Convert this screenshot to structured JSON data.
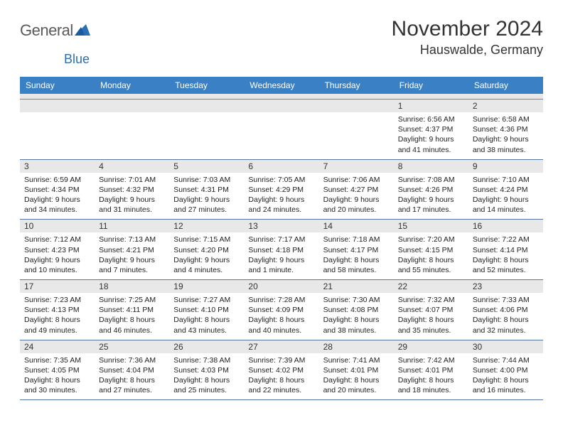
{
  "logo": {
    "text1": "General",
    "text2": "Blue",
    "color_gray": "#5a5a5a",
    "color_blue": "#2b6fb5",
    "triangle_color": "#2b6fb5"
  },
  "header": {
    "month_title": "November 2024",
    "location": "Hauswalde, Germany"
  },
  "colors": {
    "header_bg": "#3a80c4",
    "header_text": "#ffffff",
    "daynum_bg": "#e8e8e8",
    "border": "#5577a0"
  },
  "day_labels": [
    "Sunday",
    "Monday",
    "Tuesday",
    "Wednesday",
    "Thursday",
    "Friday",
    "Saturday"
  ],
  "weeks": [
    [
      {
        "n": "",
        "lines": []
      },
      {
        "n": "",
        "lines": []
      },
      {
        "n": "",
        "lines": []
      },
      {
        "n": "",
        "lines": []
      },
      {
        "n": "",
        "lines": []
      },
      {
        "n": "1",
        "lines": [
          "Sunrise: 6:56 AM",
          "Sunset: 4:37 PM",
          "Daylight: 9 hours",
          "and 41 minutes."
        ]
      },
      {
        "n": "2",
        "lines": [
          "Sunrise: 6:58 AM",
          "Sunset: 4:36 PM",
          "Daylight: 9 hours",
          "and 38 minutes."
        ]
      }
    ],
    [
      {
        "n": "3",
        "lines": [
          "Sunrise: 6:59 AM",
          "Sunset: 4:34 PM",
          "Daylight: 9 hours",
          "and 34 minutes."
        ]
      },
      {
        "n": "4",
        "lines": [
          "Sunrise: 7:01 AM",
          "Sunset: 4:32 PM",
          "Daylight: 9 hours",
          "and 31 minutes."
        ]
      },
      {
        "n": "5",
        "lines": [
          "Sunrise: 7:03 AM",
          "Sunset: 4:31 PM",
          "Daylight: 9 hours",
          "and 27 minutes."
        ]
      },
      {
        "n": "6",
        "lines": [
          "Sunrise: 7:05 AM",
          "Sunset: 4:29 PM",
          "Daylight: 9 hours",
          "and 24 minutes."
        ]
      },
      {
        "n": "7",
        "lines": [
          "Sunrise: 7:06 AM",
          "Sunset: 4:27 PM",
          "Daylight: 9 hours",
          "and 20 minutes."
        ]
      },
      {
        "n": "8",
        "lines": [
          "Sunrise: 7:08 AM",
          "Sunset: 4:26 PM",
          "Daylight: 9 hours",
          "and 17 minutes."
        ]
      },
      {
        "n": "9",
        "lines": [
          "Sunrise: 7:10 AM",
          "Sunset: 4:24 PM",
          "Daylight: 9 hours",
          "and 14 minutes."
        ]
      }
    ],
    [
      {
        "n": "10",
        "lines": [
          "Sunrise: 7:12 AM",
          "Sunset: 4:23 PM",
          "Daylight: 9 hours",
          "and 10 minutes."
        ]
      },
      {
        "n": "11",
        "lines": [
          "Sunrise: 7:13 AM",
          "Sunset: 4:21 PM",
          "Daylight: 9 hours",
          "and 7 minutes."
        ]
      },
      {
        "n": "12",
        "lines": [
          "Sunrise: 7:15 AM",
          "Sunset: 4:20 PM",
          "Daylight: 9 hours",
          "and 4 minutes."
        ]
      },
      {
        "n": "13",
        "lines": [
          "Sunrise: 7:17 AM",
          "Sunset: 4:18 PM",
          "Daylight: 9 hours",
          "and 1 minute."
        ]
      },
      {
        "n": "14",
        "lines": [
          "Sunrise: 7:18 AM",
          "Sunset: 4:17 PM",
          "Daylight: 8 hours",
          "and 58 minutes."
        ]
      },
      {
        "n": "15",
        "lines": [
          "Sunrise: 7:20 AM",
          "Sunset: 4:15 PM",
          "Daylight: 8 hours",
          "and 55 minutes."
        ]
      },
      {
        "n": "16",
        "lines": [
          "Sunrise: 7:22 AM",
          "Sunset: 4:14 PM",
          "Daylight: 8 hours",
          "and 52 minutes."
        ]
      }
    ],
    [
      {
        "n": "17",
        "lines": [
          "Sunrise: 7:23 AM",
          "Sunset: 4:13 PM",
          "Daylight: 8 hours",
          "and 49 minutes."
        ]
      },
      {
        "n": "18",
        "lines": [
          "Sunrise: 7:25 AM",
          "Sunset: 4:11 PM",
          "Daylight: 8 hours",
          "and 46 minutes."
        ]
      },
      {
        "n": "19",
        "lines": [
          "Sunrise: 7:27 AM",
          "Sunset: 4:10 PM",
          "Daylight: 8 hours",
          "and 43 minutes."
        ]
      },
      {
        "n": "20",
        "lines": [
          "Sunrise: 7:28 AM",
          "Sunset: 4:09 PM",
          "Daylight: 8 hours",
          "and 40 minutes."
        ]
      },
      {
        "n": "21",
        "lines": [
          "Sunrise: 7:30 AM",
          "Sunset: 4:08 PM",
          "Daylight: 8 hours",
          "and 38 minutes."
        ]
      },
      {
        "n": "22",
        "lines": [
          "Sunrise: 7:32 AM",
          "Sunset: 4:07 PM",
          "Daylight: 8 hours",
          "and 35 minutes."
        ]
      },
      {
        "n": "23",
        "lines": [
          "Sunrise: 7:33 AM",
          "Sunset: 4:06 PM",
          "Daylight: 8 hours",
          "and 32 minutes."
        ]
      }
    ],
    [
      {
        "n": "24",
        "lines": [
          "Sunrise: 7:35 AM",
          "Sunset: 4:05 PM",
          "Daylight: 8 hours",
          "and 30 minutes."
        ]
      },
      {
        "n": "25",
        "lines": [
          "Sunrise: 7:36 AM",
          "Sunset: 4:04 PM",
          "Daylight: 8 hours",
          "and 27 minutes."
        ]
      },
      {
        "n": "26",
        "lines": [
          "Sunrise: 7:38 AM",
          "Sunset: 4:03 PM",
          "Daylight: 8 hours",
          "and 25 minutes."
        ]
      },
      {
        "n": "27",
        "lines": [
          "Sunrise: 7:39 AM",
          "Sunset: 4:02 PM",
          "Daylight: 8 hours",
          "and 22 minutes."
        ]
      },
      {
        "n": "28",
        "lines": [
          "Sunrise: 7:41 AM",
          "Sunset: 4:01 PM",
          "Daylight: 8 hours",
          "and 20 minutes."
        ]
      },
      {
        "n": "29",
        "lines": [
          "Sunrise: 7:42 AM",
          "Sunset: 4:01 PM",
          "Daylight: 8 hours",
          "and 18 minutes."
        ]
      },
      {
        "n": "30",
        "lines": [
          "Sunrise: 7:44 AM",
          "Sunset: 4:00 PM",
          "Daylight: 8 hours",
          "and 16 minutes."
        ]
      }
    ]
  ]
}
